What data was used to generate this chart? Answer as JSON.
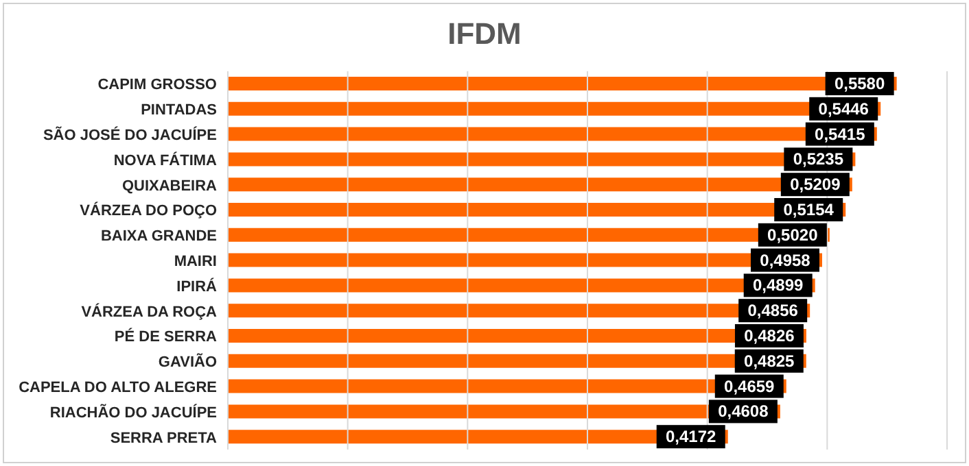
{
  "chart_data": {
    "type": "bar",
    "title": "IFDM",
    "orientation": "horizontal",
    "categories": [
      "CAPIM GROSSO",
      "PINTADAS",
      "SÃO JOSÉ DO JACUÍPE",
      "NOVA FÁTIMA",
      "QUIXABEIRA",
      "VÁRZEA DO POÇO",
      "BAIXA GRANDE",
      "MAIRI",
      "IPIRÁ",
      "VÁRZEA DA ROÇA",
      "PÉ DE SERRA",
      "GAVIÃO",
      "CAPELA DO ALTO ALEGRE",
      "RIACHÃO DO JACUÍPE",
      "SERRA PRETA"
    ],
    "values": [
      0.558,
      0.5446,
      0.5415,
      0.5235,
      0.5209,
      0.5154,
      0.502,
      0.4958,
      0.4899,
      0.4856,
      0.4826,
      0.4825,
      0.4659,
      0.4608,
      0.4172
    ],
    "value_labels": [
      "0,5580",
      "0,5446",
      "0,5415",
      "0,5235",
      "0,5209",
      "0,5154",
      "0,5020",
      "0,4958",
      "0,4899",
      "0,4856",
      "0,4826",
      "0,4825",
      "0,4659",
      "0,4608",
      "0,4172"
    ],
    "color": "#ff6600",
    "xlim": [
      0,
      0.6
    ],
    "xticks": [
      {
        "value": 0,
        "label": null
      },
      {
        "value": 0.1,
        "label": null
      },
      {
        "value": 0.2,
        "label": null
      },
      {
        "value": 0.3,
        "label": null
      },
      {
        "value": 0.4,
        "label": null
      },
      {
        "value": 0.5,
        "label": null
      },
      {
        "value": 0.6,
        "label": null
      }
    ],
    "grid": "x",
    "tick_labels": "y"
  }
}
